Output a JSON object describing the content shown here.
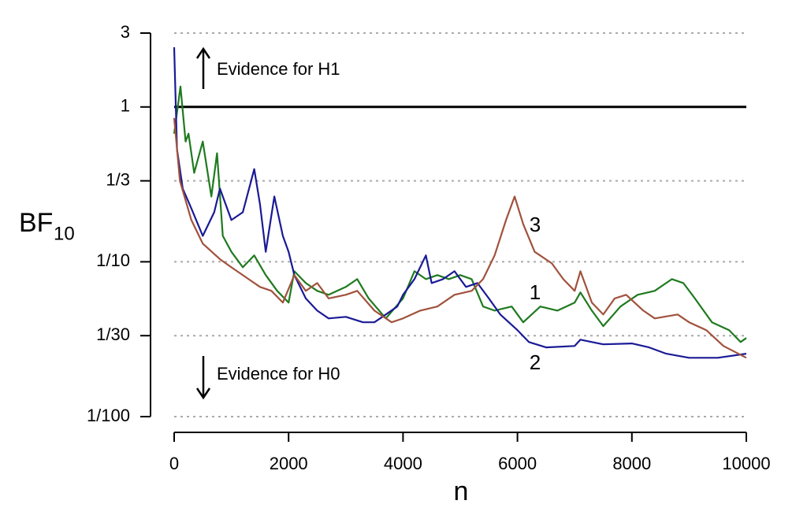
{
  "chart_data": {
    "type": "line",
    "ylabel": "BF",
    "ylabel_sub": "10",
    "xlabel": "n",
    "xlim": [
      0,
      10000
    ],
    "xticks": [
      0,
      2000,
      4000,
      6000,
      8000,
      10000
    ],
    "ylim": [
      0.01,
      3
    ],
    "ylog": true,
    "yticks": [
      3,
      1,
      {
        "value": 0.3333,
        "label": "1/3"
      },
      {
        "value": 0.1,
        "label": "1/10"
      },
      {
        "value": 0.03333,
        "label": "1/30"
      },
      {
        "value": 0.01,
        "label": "1/100"
      }
    ],
    "grid": true,
    "reference_line": 1,
    "annotations": [
      "Evidence for H1",
      "Evidence for H0"
    ],
    "series": [
      {
        "name": "1",
        "color": "#1f7a1f",
        "x": [
          0,
          110,
          200,
          250,
          350,
          500,
          650,
          750,
          850,
          1000,
          1200,
          1400,
          1600,
          1800,
          2000,
          2100,
          2300,
          2500,
          2700,
          3000,
          3200,
          3400,
          3700,
          4000,
          4200,
          4400,
          4600,
          4800,
          5000,
          5200,
          5400,
          5600,
          5900,
          6100,
          6400,
          6700,
          7000,
          7100,
          7300,
          7500,
          7800,
          8100,
          8400,
          8700,
          8900,
          9100,
          9400,
          9700,
          9900,
          10000
        ],
        "values": [
          0.672,
          1.355,
          0.598,
          0.672,
          0.375,
          0.598,
          0.264,
          0.502,
          0.147,
          0.116,
          0.0921,
          0.11,
          0.082,
          0.0649,
          0.0545,
          0.0869,
          0.0729,
          0.0649,
          0.0612,
          0.0688,
          0.0773,
          0.058,
          0.0431,
          0.058,
          0.0869,
          0.0773,
          0.082,
          0.0773,
          0.082,
          0.0773,
          0.0514,
          0.0484,
          0.0514,
          0.0407,
          0.0514,
          0.0484,
          0.0545,
          0.0634,
          0.0484,
          0.0384,
          0.0514,
          0.0612,
          0.0649,
          0.0773,
          0.0729,
          0.058,
          0.0407,
          0.0362,
          0.0303,
          0.0322
        ]
      },
      {
        "name": "2",
        "color": "#1a1a96",
        "x": [
          0,
          50,
          150,
          300,
          500,
          700,
          800,
          1000,
          1200,
          1400,
          1500,
          1600,
          1750,
          1900,
          2000,
          2100,
          2300,
          2500,
          2700,
          3000,
          3300,
          3500,
          3700,
          3900,
          4000,
          4200,
          4400,
          4500,
          4700,
          4900,
          5100,
          5300,
          5500,
          5700,
          6000,
          6200,
          6500,
          7000,
          7100,
          7500,
          8000,
          8300,
          8600,
          9000,
          9500,
          10000
        ],
        "values": [
          2.43,
          0.532,
          0.297,
          0.221,
          0.147,
          0.209,
          0.297,
          0.186,
          0.209,
          0.397,
          0.235,
          0.116,
          0.264,
          0.147,
          0.116,
          0.082,
          0.058,
          0.0484,
          0.0431,
          0.0441,
          0.0407,
          0.0407,
          0.0457,
          0.0514,
          0.0612,
          0.0773,
          0.11,
          0.0729,
          0.0773,
          0.0869,
          0.0688,
          0.0729,
          0.058,
          0.0457,
          0.0362,
          0.0303,
          0.028,
          0.0286,
          0.0314,
          0.0293,
          0.0297,
          0.028,
          0.0255,
          0.024,
          0.024,
          0.0255
        ]
      },
      {
        "name": "3",
        "color": "#a0523d",
        "x": [
          0,
          100,
          300,
          500,
          800,
          1000,
          1300,
          1500,
          1700,
          1900,
          2100,
          2300,
          2500,
          2700,
          3000,
          3200,
          3500,
          3800,
          4000,
          4300,
          4600,
          4900,
          5200,
          5400,
          5600,
          5800,
          5950,
          6100,
          6300,
          6600,
          6800,
          7000,
          7100,
          7300,
          7500,
          7700,
          7900,
          8200,
          8400,
          8800,
          9000,
          9300,
          9600,
          10000
        ],
        "values": [
          0.849,
          0.333,
          0.186,
          0.131,
          0.104,
          0.0921,
          0.0773,
          0.0688,
          0.0649,
          0.0545,
          0.082,
          0.0649,
          0.0729,
          0.058,
          0.0612,
          0.0649,
          0.0484,
          0.0407,
          0.0431,
          0.0484,
          0.0514,
          0.0612,
          0.0649,
          0.0773,
          0.11,
          0.186,
          0.264,
          0.175,
          0.116,
          0.0977,
          0.0773,
          0.0649,
          0.0869,
          0.0545,
          0.0457,
          0.058,
          0.0612,
          0.0484,
          0.0431,
          0.0457,
          0.0407,
          0.0362,
          0.0286,
          0.024
        ]
      }
    ]
  }
}
